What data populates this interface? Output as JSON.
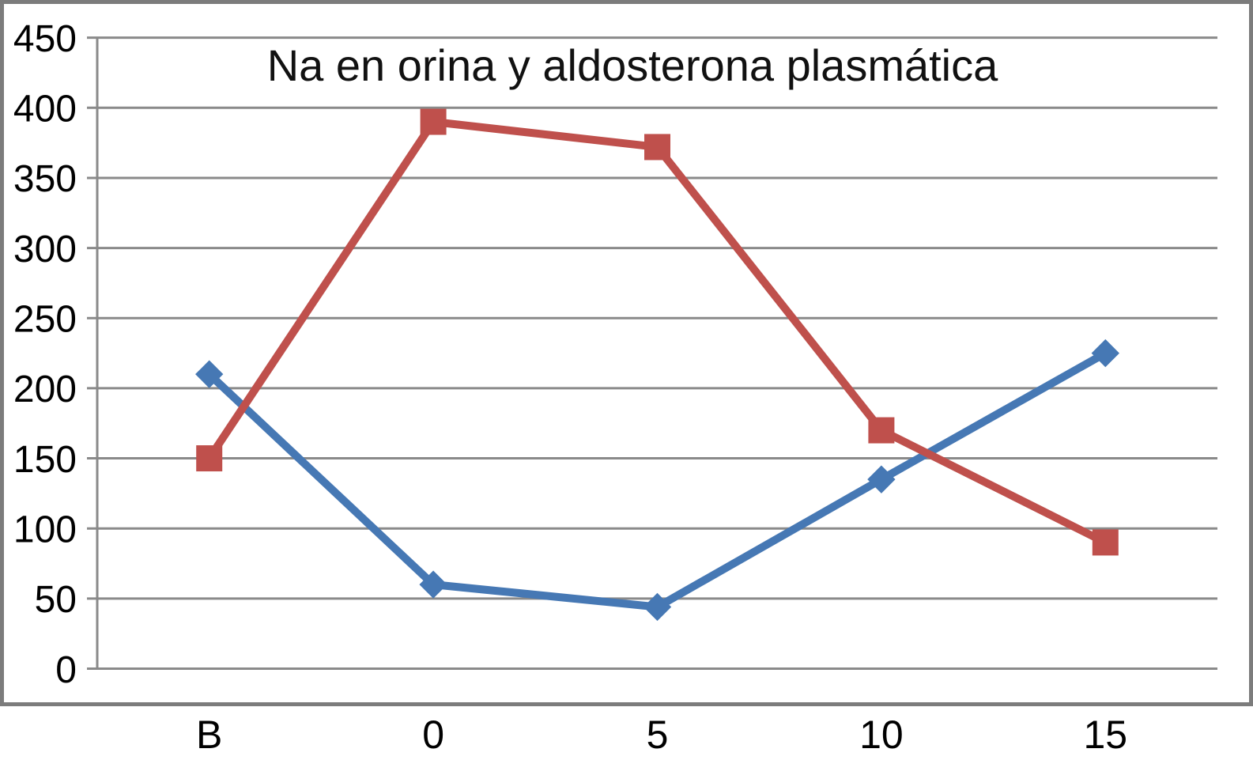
{
  "chart_data": {
    "type": "line",
    "title": "Na en orina y aldosterona plasmática",
    "categories": [
      "B",
      "0",
      "5",
      "10",
      "15"
    ],
    "y_axis": {
      "min": 0,
      "max": 450,
      "tick_interval": 50,
      "ticks": [
        0,
        50,
        100,
        150,
        200,
        250,
        300,
        350,
        400,
        450
      ]
    },
    "series": [
      {
        "id": "series-blue-diamond",
        "marker": "diamond",
        "color": "#4678B4",
        "values": [
          210,
          60,
          44,
          135,
          225
        ]
      },
      {
        "id": "series-red-square",
        "marker": "square",
        "color": "#BF504C",
        "values": [
          150,
          390,
          372,
          170,
          90
        ]
      }
    ],
    "legend": "none",
    "grid": "horizontal",
    "colors": {
      "gridline": "#8A8A8A",
      "axis": "#8A8A8A",
      "frame_border": "#7C7C7C",
      "text": "#000000",
      "background": "#FFFFFF"
    }
  }
}
